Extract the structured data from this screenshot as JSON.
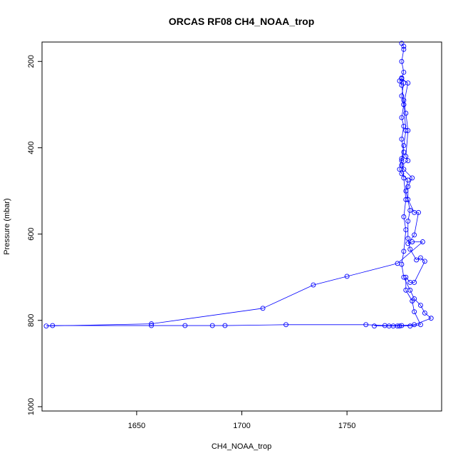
{
  "chart_data": {
    "type": "line",
    "title": "ORCAS RF08 CH4_NOAA_trop",
    "xlabel": "CH4_NOAA_trop",
    "ylabel": "Pressure (mbar)",
    "xlim": [
      1605,
      1795
    ],
    "ylim": [
      1010,
      155
    ],
    "y_reversed": true,
    "x_ticks": [
      1650,
      1700,
      1750
    ],
    "y_ticks": [
      200,
      400,
      600,
      800,
      1000
    ],
    "marker": "open-circle",
    "grid": false,
    "legend": "none",
    "color": "#0000ff",
    "series": [
      {
        "points": [
          [
            1776,
            158
          ],
          [
            1777,
            165
          ],
          [
            1777,
            172
          ],
          [
            1776,
            200
          ],
          [
            1777,
            225
          ],
          [
            1776,
            238
          ],
          [
            1777,
            250
          ],
          [
            1776,
            280
          ],
          [
            1777,
            300
          ],
          [
            1776,
            330
          ],
          [
            1777,
            350
          ],
          [
            1776,
            380
          ],
          [
            1777,
            410
          ],
          [
            1776,
            430
          ],
          [
            1777,
            470
          ],
          [
            1778,
            520
          ],
          [
            1777,
            560
          ],
          [
            1778,
            590
          ],
          [
            1777,
            640
          ],
          [
            1776,
            670
          ],
          [
            1777,
            700
          ],
          [
            1780,
            730
          ],
          [
            1782,
            750
          ],
          [
            1785,
            765
          ],
          [
            1787,
            783
          ],
          [
            1790,
            795
          ],
          [
            1782,
            810
          ],
          [
            1776,
            812
          ],
          [
            1768,
            812
          ],
          [
            1759,
            810
          ],
          [
            1721,
            810
          ],
          [
            1692,
            812
          ],
          [
            1686,
            812
          ],
          [
            1673,
            812
          ],
          [
            1657,
            812
          ],
          [
            1610,
            812
          ],
          [
            1607,
            813
          ],
          [
            1657,
            808
          ],
          [
            1710,
            772
          ],
          [
            1734,
            718
          ],
          [
            1750,
            698
          ],
          [
            1774,
            668
          ],
          [
            1786,
            618
          ],
          [
            1781,
            618
          ],
          [
            1779,
            622
          ],
          [
            1782,
            602
          ],
          [
            1784,
            550
          ],
          [
            1782,
            550
          ],
          [
            1779,
            520
          ],
          [
            1779,
            490
          ],
          [
            1781,
            470
          ],
          [
            1777,
            450
          ],
          [
            1776,
            440
          ],
          [
            1779,
            430
          ],
          [
            1778,
            420
          ],
          [
            1779,
            360
          ],
          [
            1778,
            320
          ],
          [
            1777,
            290
          ],
          [
            1776,
            255
          ],
          [
            1775,
            245
          ],
          [
            1776,
            240
          ],
          [
            1779,
            250
          ],
          [
            1777,
            300
          ],
          [
            1778,
            360
          ],
          [
            1777,
            395
          ],
          [
            1776,
            425
          ],
          [
            1775,
            450
          ],
          [
            1776,
            460
          ],
          [
            1779,
            475
          ],
          [
            1778,
            500
          ],
          [
            1780,
            545
          ],
          [
            1779,
            570
          ],
          [
            1779,
            610
          ],
          [
            1780,
            635
          ],
          [
            1783,
            660
          ],
          [
            1785,
            655
          ],
          [
            1787,
            663
          ],
          [
            1782,
            712
          ],
          [
            1780,
            712
          ],
          [
            1778,
            700
          ],
          [
            1778,
            730
          ],
          [
            1781,
            755
          ],
          [
            1782,
            780
          ],
          [
            1785,
            810
          ],
          [
            1780,
            813
          ],
          [
            1774,
            813
          ],
          [
            1770,
            813
          ],
          [
            1772,
            813
          ],
          [
            1775,
            813
          ],
          [
            1763,
            813
          ]
        ]
      }
    ]
  }
}
